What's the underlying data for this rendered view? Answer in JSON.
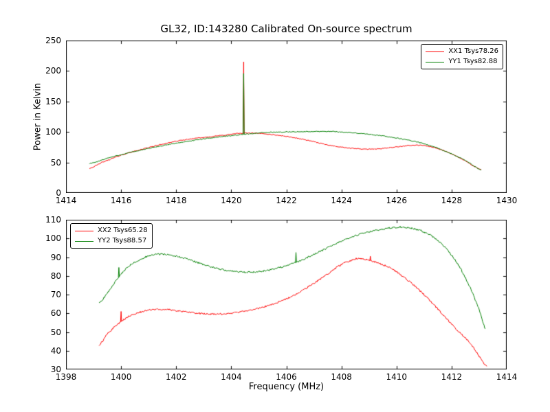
{
  "figure": {
    "title": "GL32, ID:143280 Calibrated On-source spectrum"
  },
  "chart_data": [
    {
      "type": "line",
      "title": "GL32, ID:143280 Calibrated On-source spectrum",
      "xlabel": "",
      "ylabel": "Power in Kelvin",
      "xlim": [
        1414,
        1430
      ],
      "ylim": [
        0,
        250
      ],
      "xticks": [
        1414,
        1416,
        1418,
        1420,
        1422,
        1424,
        1426,
        1428,
        1430
      ],
      "yticks": [
        0,
        50,
        100,
        150,
        200,
        250
      ],
      "grid": false,
      "legend_position": "upper right",
      "series": [
        {
          "name": "XX1 Tsys78.26",
          "color": "#ff0000",
          "noise": 1.5,
          "points": [
            [
              1414.85,
              40.5
            ],
            [
              1415.3,
              50
            ],
            [
              1416,
              62
            ],
            [
              1416.7,
              71
            ],
            [
              1417.5,
              80
            ],
            [
              1418.3,
              87
            ],
            [
              1419,
              91
            ],
            [
              1419.8,
              95
            ],
            [
              1420.4,
              98
            ],
            [
              1421,
              97.5
            ],
            [
              1421.8,
              94
            ],
            [
              1422.6,
              88
            ],
            [
              1423.4,
              80
            ],
            [
              1424,
              75
            ],
            [
              1424.6,
              72.5
            ],
            [
              1425.2,
              72
            ],
            [
              1425.8,
              74.5
            ],
            [
              1426.4,
              77.5
            ],
            [
              1426.9,
              78
            ],
            [
              1427.4,
              74
            ],
            [
              1427.9,
              66
            ],
            [
              1428.4,
              55
            ],
            [
              1428.9,
              42
            ],
            [
              1429.1,
              38
            ]
          ],
          "spikes": [
            {
              "x": 1420.45,
              "top": 215
            }
          ]
        },
        {
          "name": "YY1 Tsys82.88",
          "color": "#007f00",
          "noise": 1.5,
          "points": [
            [
              1414.85,
              48
            ],
            [
              1415.5,
              57
            ],
            [
              1416.2,
              65
            ],
            [
              1417,
              73
            ],
            [
              1417.8,
              80
            ],
            [
              1418.6,
              86
            ],
            [
              1419.4,
              91
            ],
            [
              1420.2,
              95
            ],
            [
              1420.8,
              97.5
            ],
            [
              1421.4,
              99.5
            ],
            [
              1422,
              100
            ],
            [
              1422.8,
              100.5
            ],
            [
              1423.4,
              101
            ],
            [
              1424,
              100
            ],
            [
              1424.8,
              97
            ],
            [
              1425.6,
              93
            ],
            [
              1426.2,
              88.5
            ],
            [
              1426.8,
              83
            ],
            [
              1427.4,
              75
            ],
            [
              1428,
              64
            ],
            [
              1428.5,
              53
            ],
            [
              1429.1,
              37.5
            ]
          ],
          "spikes": [
            {
              "x": 1420.45,
              "top": 196
            }
          ]
        }
      ]
    },
    {
      "type": "line",
      "title": "",
      "xlabel": "Frequency (MHz)",
      "ylabel": "",
      "xlim": [
        1398,
        1414
      ],
      "ylim": [
        30,
        110
      ],
      "xticks": [
        1398,
        1400,
        1402,
        1404,
        1406,
        1408,
        1410,
        1412,
        1414
      ],
      "yticks": [
        30,
        40,
        50,
        60,
        70,
        80,
        90,
        100,
        110
      ],
      "grid": false,
      "legend_position": "upper left",
      "series": [
        {
          "name": "XX2 Tsys65.28",
          "color": "#ff0000",
          "noise": 0.9,
          "points": [
            [
              1399.2,
              43
            ],
            [
              1399.5,
              49
            ],
            [
              1399.9,
              54.5
            ],
            [
              1400.3,
              58.5
            ],
            [
              1400.8,
              61
            ],
            [
              1401.2,
              62
            ],
            [
              1401.7,
              62
            ],
            [
              1402.2,
              61
            ],
            [
              1402.8,
              60
            ],
            [
              1403.4,
              59.5
            ],
            [
              1404,
              60
            ],
            [
              1404.6,
              61.5
            ],
            [
              1405.2,
              63.5
            ],
            [
              1405.8,
              66.5
            ],
            [
              1406.4,
              70.5
            ],
            [
              1407,
              76
            ],
            [
              1407.5,
              81
            ],
            [
              1408,
              86
            ],
            [
              1408.3,
              88
            ],
            [
              1408.6,
              89.3
            ],
            [
              1409,
              88.5
            ],
            [
              1409.4,
              86.5
            ],
            [
              1409.8,
              84
            ],
            [
              1410.2,
              80
            ],
            [
              1410.7,
              74
            ],
            [
              1411.2,
              67
            ],
            [
              1411.7,
              59
            ],
            [
              1412.2,
              51
            ],
            [
              1412.7,
              43.5
            ],
            [
              1413.3,
              31.5
            ]
          ],
          "spikes": [
            {
              "x": 1400.0,
              "top": 61
            },
            {
              "x": 1409.05,
              "top": 90.5
            }
          ]
        },
        {
          "name": "YY2 Tsys88.57",
          "color": "#007f00",
          "noise": 0.9,
          "points": [
            [
              1399.2,
              65.5
            ],
            [
              1399.5,
              71
            ],
            [
              1399.9,
              79
            ],
            [
              1400.3,
              85.5
            ],
            [
              1400.8,
              89.5
            ],
            [
              1401.2,
              91.3
            ],
            [
              1401.6,
              91.5
            ],
            [
              1402,
              90.5
            ],
            [
              1402.5,
              88.5
            ],
            [
              1403,
              86
            ],
            [
              1403.5,
              84
            ],
            [
              1404,
              82.5
            ],
            [
              1404.5,
              82
            ],
            [
              1405,
              82.3
            ],
            [
              1405.5,
              83.5
            ],
            [
              1406,
              85.5
            ],
            [
              1406.5,
              88
            ],
            [
              1407,
              91.5
            ],
            [
              1407.5,
              95
            ],
            [
              1408,
              98.5
            ],
            [
              1408.5,
              101.5
            ],
            [
              1409,
              103.5
            ],
            [
              1409.5,
              105
            ],
            [
              1410,
              106
            ],
            [
              1410.4,
              105.8
            ],
            [
              1410.9,
              104
            ],
            [
              1411.4,
              100
            ],
            [
              1411.9,
              93
            ],
            [
              1412.3,
              84.5
            ],
            [
              1412.7,
              73
            ],
            [
              1413,
              62
            ],
            [
              1413.25,
              51
            ]
          ],
          "spikes": [
            {
              "x": 1399.92,
              "top": 84.5
            },
            {
              "x": 1406.35,
              "top": 92.5
            }
          ]
        }
      ]
    }
  ]
}
